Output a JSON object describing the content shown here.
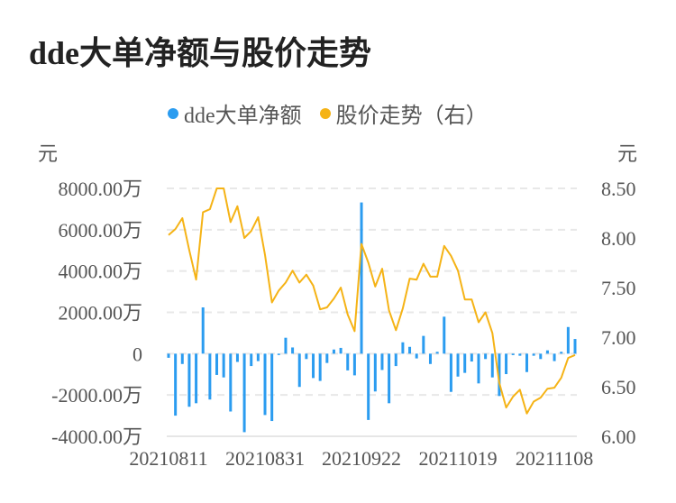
{
  "chart_data": {
    "type": "bar+line",
    "title": "dde大单净额与股价走势",
    "legend_position": "top-center",
    "legend": [
      "dde大单净额",
      "股价走势（右）"
    ],
    "left_unit": "元",
    "right_unit": "元",
    "ylim_left": [
      -4000,
      8000
    ],
    "ylim_right": [
      6.0,
      8.5
    ],
    "left_ticks": [
      8000,
      6000,
      4000,
      2000,
      0,
      -2000,
      -4000
    ],
    "left_tick_labels": [
      "8000.00万",
      "6000.00万",
      "4000.00万",
      "2000.00万",
      "0",
      "-2000.00万",
      "-4000.00万"
    ],
    "right_ticks": [
      8.5,
      8.0,
      7.5,
      7.0,
      6.5,
      6.0
    ],
    "right_tick_labels": [
      "8.50",
      "8.00",
      "7.50",
      "7.00",
      "6.50",
      "6.00"
    ],
    "x_tick_labels": [
      "20210811",
      "20210831",
      "20210922",
      "20211019",
      "20211108"
    ],
    "x_tick_indices": [
      0,
      14,
      28,
      42,
      56
    ],
    "grid": true,
    "x": [
      "20210811",
      "20210812",
      "20210813",
      "20210816",
      "20210817",
      "20210818",
      "20210819",
      "20210820",
      "20210823",
      "20210824",
      "20210825",
      "20210826",
      "20210827",
      "20210830",
      "20210831",
      "20210901",
      "20210902",
      "20210903",
      "20210906",
      "20210907",
      "20210908",
      "20210909",
      "20210910",
      "20210913",
      "20210914",
      "20210915",
      "20210916",
      "20210917",
      "20210922",
      "20210923",
      "20210924",
      "20210927",
      "20210928",
      "20210929",
      "20210930",
      "20211008",
      "20211011",
      "20211012",
      "20211013",
      "20211014",
      "20211015",
      "20211018",
      "20211019",
      "20211020",
      "20211021",
      "20211022",
      "20211025",
      "20211026",
      "20211027",
      "20211028",
      "20211029",
      "20211101",
      "20211102",
      "20211103",
      "20211104",
      "20211105",
      "20211108",
      "20211109",
      "20211110",
      "20211111"
    ],
    "series": [
      {
        "name": "dde大单净额",
        "type": "bar",
        "axis": "left",
        "unit": "万",
        "color": "#2b9cf0",
        "values": [
          -200,
          -3000,
          -500,
          -2570,
          -2400,
          2240,
          -2220,
          -1030,
          -1150,
          -2800,
          -400,
          -3800,
          -600,
          -360,
          -2970,
          -3260,
          -50,
          770,
          300,
          -1610,
          -260,
          -1180,
          -1320,
          -450,
          200,
          280,
          -810,
          -1050,
          7320,
          -3210,
          -1830,
          -790,
          -2400,
          -600,
          550,
          330,
          -230,
          860,
          -500,
          90,
          1790,
          -1850,
          -1110,
          -930,
          -380,
          -1440,
          -260,
          -1150,
          -2050,
          -990,
          -70,
          -100,
          -890,
          -100,
          -260,
          160,
          -360,
          90,
          1290,
          710
        ]
      },
      {
        "name": "股价走势（右）",
        "type": "line",
        "axis": "right",
        "color": "#f5b316",
        "values": [
          8.03,
          8.09,
          8.2,
          7.88,
          7.58,
          8.26,
          8.29,
          8.5,
          8.5,
          8.16,
          8.32,
          8.0,
          8.07,
          8.21,
          7.83,
          7.35,
          7.47,
          7.55,
          7.67,
          7.55,
          7.63,
          7.52,
          7.28,
          7.3,
          7.39,
          7.5,
          7.23,
          7.06,
          7.94,
          7.75,
          7.51,
          7.69,
          7.27,
          7.07,
          7.29,
          7.59,
          7.58,
          7.74,
          7.61,
          7.61,
          7.92,
          7.82,
          7.67,
          7.38,
          7.38,
          7.15,
          7.25,
          7.04,
          6.54,
          6.29,
          6.4,
          6.47,
          6.23,
          6.35,
          6.39,
          6.48,
          6.49,
          6.59,
          6.79,
          6.82
        ]
      }
    ]
  }
}
